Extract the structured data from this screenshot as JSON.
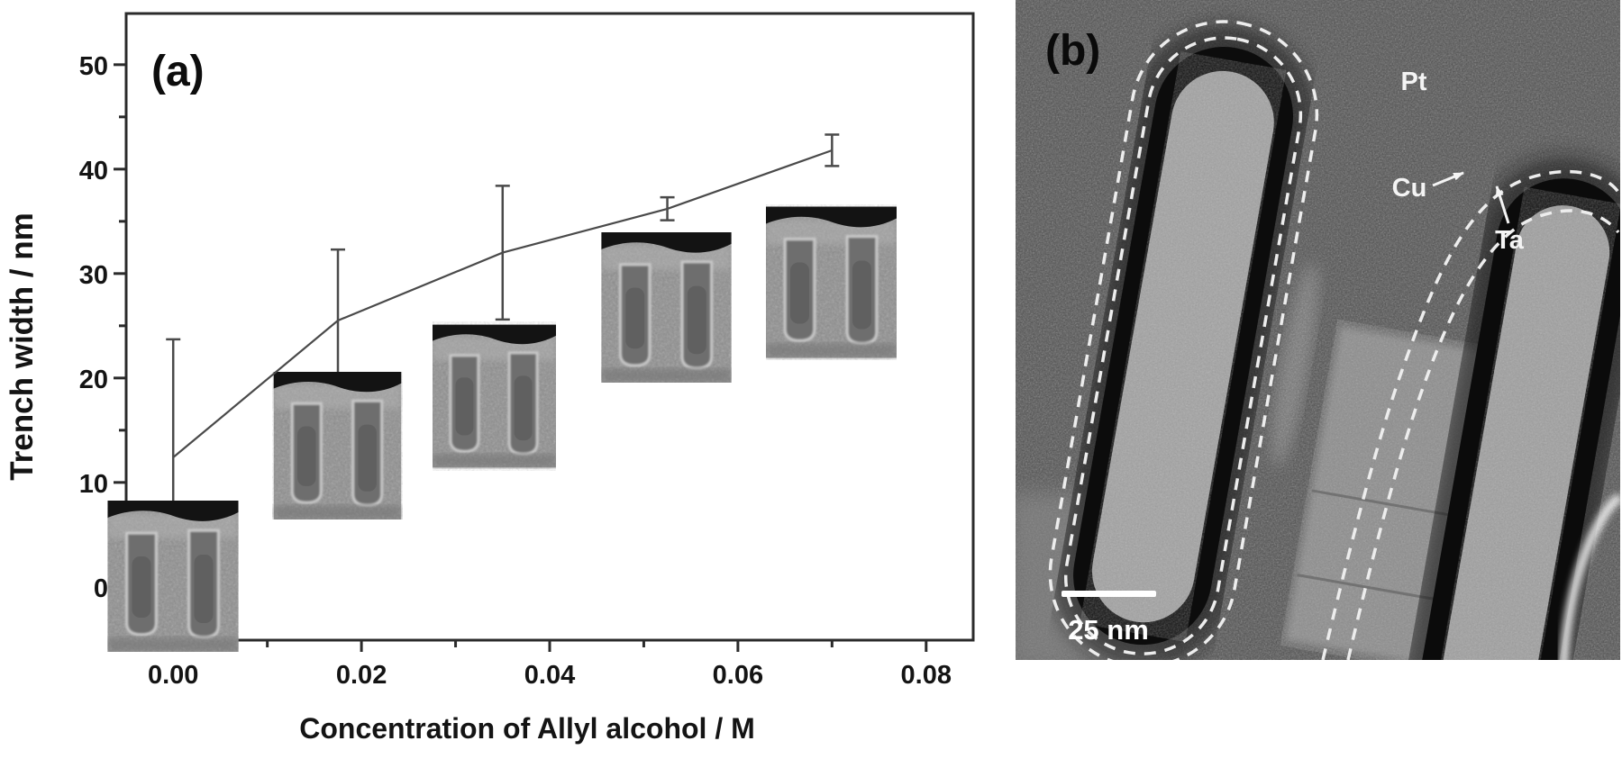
{
  "figure": {
    "panel_a": {
      "label": "(a)",
      "xlabel": "Concentration of Allyl alcohol / M",
      "ylabel": "Trench width / nm",
      "insets_count": 5
    },
    "panel_b": {
      "label": "(b)",
      "annotations": {
        "pt": "Pt",
        "cu": "Cu",
        "ta": "Ta"
      },
      "scale_bar": "25 nm"
    }
  },
  "chart_data": {
    "type": "line",
    "title": "",
    "xlabel": "Concentration of Allyl alcohol / M",
    "ylabel": "Trench width / nm",
    "xlim": [
      -0.005,
      0.085
    ],
    "ylim": [
      -5.1,
      54.9
    ],
    "x": [
      0,
      0.0175,
      0.035,
      0.0525,
      0.07
    ],
    "y": [
      12.4,
      25.5,
      32.0,
      36.2,
      41.8
    ],
    "y_err": [
      11.3,
      6.8,
      6.4,
      1.1,
      1.5
    ],
    "x_ticks": {
      "values": [
        0,
        0.02,
        0.04,
        0.06,
        0.08
      ],
      "labels": [
        "0.00",
        "0.02",
        "0.04",
        "0.06",
        "0.08"
      ],
      "minor": [
        0.01,
        0.03,
        0.05,
        0.07
      ]
    },
    "y_ticks": {
      "values": [
        0,
        10,
        20,
        30,
        40,
        50
      ],
      "labels": [
        "0",
        "10",
        "20",
        "30",
        "40",
        "50"
      ],
      "minor": [
        5,
        15,
        25,
        35,
        45
      ]
    },
    "grid": false,
    "marker": "none",
    "legend": null,
    "line_color": "#4a4a4a",
    "axis_color": "#2b2b2b"
  }
}
